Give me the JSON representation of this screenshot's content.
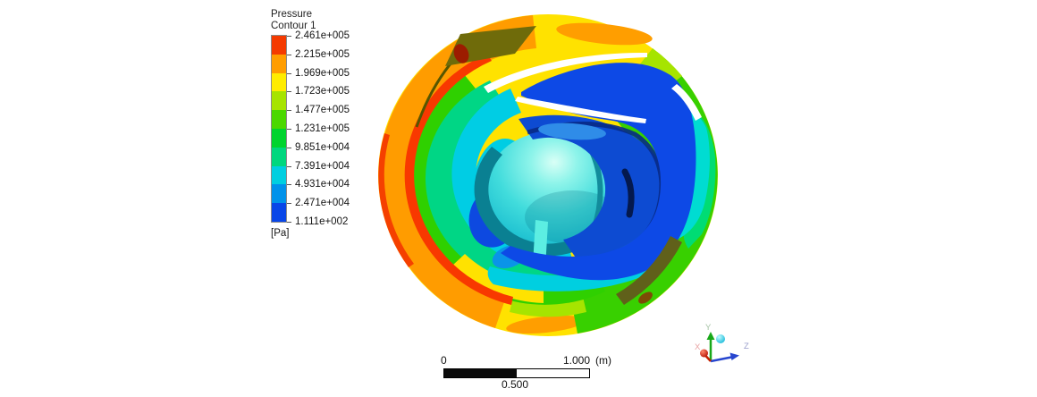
{
  "window": {
    "background": "#ffffff"
  },
  "legend": {
    "title": "Pressure",
    "subtitle": "Contour 1",
    "unit": "[Pa]",
    "entries": [
      "2.461e+005",
      "2.215e+005",
      "1.969e+005",
      "1.723e+005",
      "1.477e+005",
      "1.231e+005",
      "9.851e+004",
      "7.391e+004",
      "4.931e+004",
      "2.471e+004",
      "1.111e+002"
    ],
    "band_colors": [
      "#f43a00",
      "#ff9d00",
      "#ffec00",
      "#a6e400",
      "#4bd800",
      "#00d42e",
      "#00d77e",
      "#00cfe0",
      "#0092ea",
      "#0846e8"
    ]
  },
  "chart_data": {
    "type": "heatmap",
    "title": "Pressure",
    "legend_name": "Contour 1",
    "unit": "Pa",
    "subject": "3D pressure contour on a centrifugal pump impeller surface",
    "contour_levels": [
      246100,
      221500,
      196900,
      172300,
      147700,
      123100,
      98510,
      73910,
      49310,
      24710,
      111.1
    ],
    "level_labels": [
      "2.461e+005",
      "2.215e+005",
      "1.969e+005",
      "1.723e+005",
      "1.477e+005",
      "1.231e+005",
      "9.851e+004",
      "7.391e+004",
      "4.931e+004",
      "2.471e+004",
      "1.111e+002"
    ],
    "band_colors": [
      "#f43a00",
      "#ff9d00",
      "#ffec00",
      "#a6e400",
      "#4bd800",
      "#00d42e",
      "#00d77e",
      "#00cfe0",
      "#0092ea",
      "#0846e8"
    ],
    "value_range": {
      "min": 111.1,
      "max": 246100
    },
    "legend_position": "left",
    "description": "Outer shroud rim shows high pressure (orange/red ~2.0e5-2.5e5 Pa), mid radius green/cyan (~5e4-1.5e5 Pa), blade passages and hub deep blue low pressure (~1e2-2.5e4 Pa)."
  },
  "scale_bar": {
    "start_label": "0",
    "mid_label": "0.500",
    "end_label": "1.000",
    "unit": "(m)"
  },
  "triad": {
    "x_label": "X",
    "y_label": "Y",
    "z_label": "Z",
    "x_color": "#c42000",
    "y_color": "#18a818",
    "z_color": "#2746cf"
  }
}
